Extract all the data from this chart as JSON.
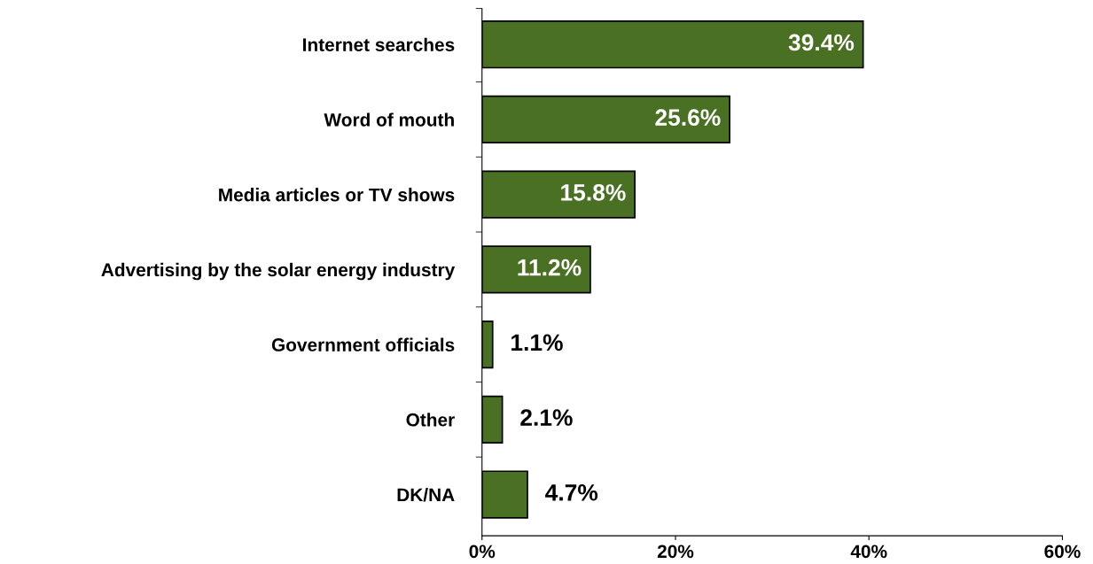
{
  "chart_data": {
    "type": "bar",
    "orientation": "horizontal",
    "categories": [
      "Internet searches",
      "Word of mouth",
      "Media articles or TV shows",
      "Advertising by the solar energy industry",
      "Government officials",
      "Other",
      "DK/NA"
    ],
    "values": [
      39.4,
      25.6,
      15.8,
      11.2,
      1.1,
      2.1,
      4.7
    ],
    "value_labels": [
      "39.4%",
      "25.6%",
      "15.8%",
      "11.2%",
      "1.1%",
      "2.1%",
      "4.7%"
    ],
    "color": "#4a7023",
    "xlim": [
      0,
      60
    ],
    "xticks": [
      {
        "value": 0,
        "label": "0%"
      },
      {
        "value": 20,
        "label": "20%"
      },
      {
        "value": 40,
        "label": "40%"
      },
      {
        "value": 60,
        "label": "60%"
      }
    ],
    "grid": false,
    "legend": false
  }
}
